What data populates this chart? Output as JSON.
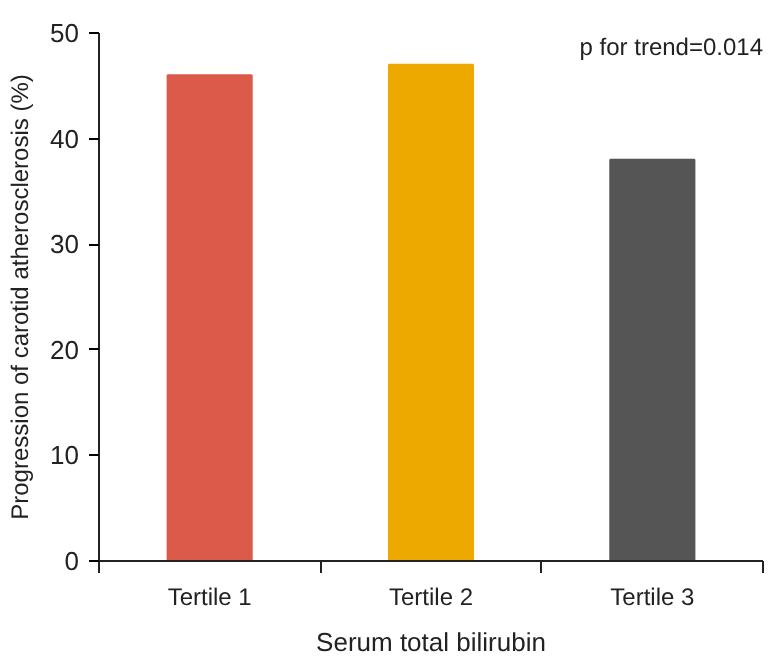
{
  "chart_data": {
    "type": "bar",
    "categories": [
      "Tertile 1",
      "Tertile 2",
      "Tertile 3"
    ],
    "values": [
      46,
      47,
      38
    ],
    "colors": [
      "#db5a4a",
      "#eda900",
      "#555555"
    ],
    "xlabel": "Serum total bilirubin",
    "ylabel": "Progression of carotid atherosclerosis (%)",
    "ylim": [
      0,
      50
    ],
    "yticks": [
      0,
      10,
      20,
      30,
      40,
      50
    ],
    "annotations": [
      "p for trend=0.014"
    ],
    "grid": false
  }
}
